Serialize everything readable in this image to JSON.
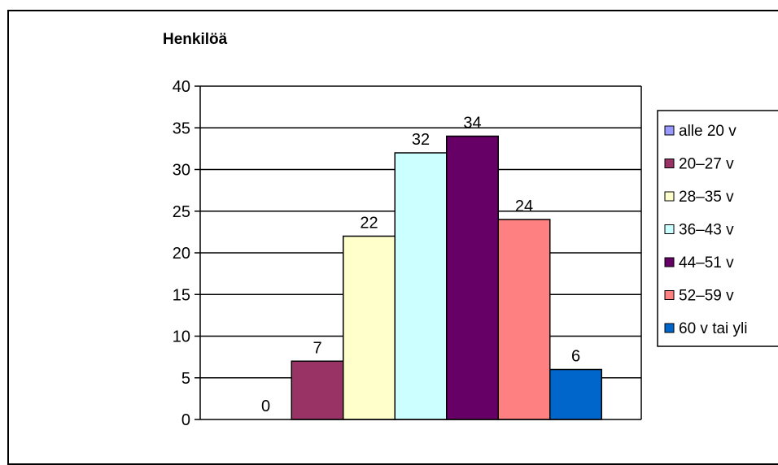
{
  "chart_data": {
    "type": "bar",
    "ylabel": "Henkilöä",
    "ylim": [
      0,
      40
    ],
    "yticks": [
      0,
      5,
      10,
      15,
      20,
      25,
      30,
      35,
      40
    ],
    "grid": true,
    "legend_position": "right",
    "series": [
      {
        "name": "alle 20 v",
        "value": 0,
        "color": "#9999FF",
        "label": "0"
      },
      {
        "name": "20–27 v",
        "value": 7,
        "color": "#993366",
        "label": "7"
      },
      {
        "name": "28–35 v",
        "value": 22,
        "color": "#FFFFCC",
        "label": "22"
      },
      {
        "name": "36–43 v",
        "value": 32,
        "color": "#CCFFFF",
        "label": "32"
      },
      {
        "name": "44–51 v",
        "value": 34,
        "color": "#660066",
        "label": "34"
      },
      {
        "name": "52–59 v",
        "value": 24,
        "color": "#FF8080",
        "label": "24"
      },
      {
        "name": "60 v tai yli",
        "value": 6,
        "color": "#0066CC",
        "label": "6"
      }
    ]
  }
}
